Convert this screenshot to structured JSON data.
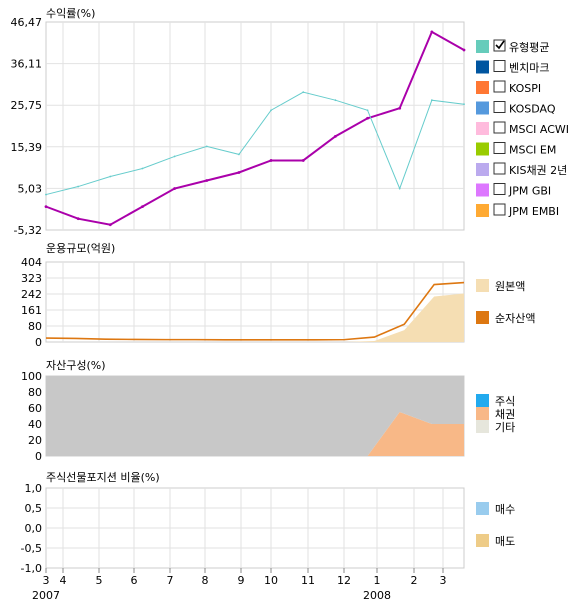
{
  "chart_data": [
    {
      "type": "line",
      "title": "수익률(%)",
      "y_ticks": [
        "46,47",
        "36,11",
        "25,75",
        "15,39",
        "5,03",
        "-5,32"
      ],
      "ylim": [
        -5.32,
        46.47
      ],
      "x": [
        "2007-03",
        "2007-04",
        "2007-05",
        "2007-06",
        "2007-07",
        "2007-08",
        "2007-09",
        "2007-10",
        "2007-11",
        "2007-12",
        "2008-01",
        "2008-02",
        "2008-03",
        "2008-03-end"
      ],
      "series": [
        {
          "name": "유형평균",
          "color": "#aa00aa",
          "checked": true,
          "values": [
            0.5,
            -2.5,
            -4.0,
            0.5,
            5.0,
            7.0,
            9.0,
            12.0,
            12.0,
            18.0,
            22.5,
            25.0,
            44.0,
            39.5
          ]
        },
        {
          "name": "",
          "color": "#66cccc",
          "checked": false,
          "values": [
            3.5,
            5.5,
            8.0,
            10.0,
            13.0,
            15.5,
            13.5,
            24.5,
            29.0,
            27.0,
            24.5,
            5.0,
            27.0,
            26.0
          ]
        }
      ],
      "legend": [
        {
          "label": "유형평균",
          "color": "#66ccbb",
          "checked": true
        },
        {
          "label": "벤치마크",
          "color": "#0055a0",
          "checked": false
        },
        {
          "label": "KOSPI",
          "color": "#ff7733",
          "checked": false
        },
        {
          "label": "KOSDAQ",
          "color": "#5599dd",
          "checked": false
        },
        {
          "label": "MSCI ACWI",
          "color": "#ffbbdd",
          "checked": false
        },
        {
          "label": "MSCI EM",
          "color": "#99cc00",
          "checked": false
        },
        {
          "label": "KIS채권 2년",
          "color": "#bbaaee",
          "checked": false
        },
        {
          "label": "JPM GBI",
          "color": "#dd77ff",
          "checked": false
        },
        {
          "label": "JPM EMBI",
          "color": "#ffaa33",
          "checked": false
        }
      ]
    },
    {
      "type": "area",
      "title": "운용규모(억원)",
      "y_ticks": [
        "404",
        "323",
        "242",
        "161",
        "80",
        "0"
      ],
      "ylim": [
        0,
        404
      ],
      "series": [
        {
          "name": "원본액",
          "color": "#f5deb3",
          "values": [
            0,
            0,
            0,
            0,
            0,
            0,
            0,
            0,
            0,
            0,
            0,
            5,
            60,
            230,
            245
          ]
        },
        {
          "name": "순자산액",
          "color": "#dd7711",
          "values": [
            20,
            18,
            14,
            13,
            12,
            12,
            11,
            11,
            11,
            11,
            12,
            25,
            90,
            290,
            300
          ]
        }
      ],
      "legend": [
        {
          "label": "원본액",
          "color": "#f5deb3"
        },
        {
          "label": "순자산액",
          "color": "#dd7711"
        }
      ]
    },
    {
      "type": "area",
      "title": "자산구성(%)",
      "y_ticks": [
        "100",
        "80",
        "60",
        "40",
        "20",
        "0"
      ],
      "ylim": [
        0,
        100
      ],
      "series": [
        {
          "name": "기타",
          "color": "#c8c8c8",
          "values": [
            100,
            100,
            100,
            100,
            100,
            100,
            100,
            100,
            100,
            100,
            100,
            45,
            60,
            60
          ]
        },
        {
          "name": "채권",
          "color": "#f8b887",
          "values": [
            0,
            0,
            0,
            0,
            0,
            0,
            0,
            0,
            0,
            0,
            0,
            55,
            40,
            40
          ]
        }
      ],
      "legend": [
        {
          "label": "주식",
          "color": "#22aaee"
        },
        {
          "label": "채권",
          "color": "#f8b887"
        },
        {
          "label": "기타",
          "color": "#e6e6dc"
        }
      ]
    },
    {
      "type": "bar",
      "title": "주식선물포지션 비율(%)",
      "y_ticks": [
        "1,0",
        "0,5",
        "0,0",
        "-0,5",
        "-1,0"
      ],
      "ylim": [
        -1.0,
        1.0
      ],
      "series": [],
      "legend": [
        {
          "label": "매수",
          "color": "#99ccee"
        },
        {
          "label": "매도",
          "color": "#eecc88"
        }
      ]
    }
  ],
  "x_axis": {
    "ticks": [
      "3",
      "4",
      "5",
      "6",
      "7",
      "8",
      "9",
      "10",
      "11",
      "12",
      "1",
      "2",
      "3"
    ],
    "years": [
      "2007",
      "2008"
    ]
  }
}
